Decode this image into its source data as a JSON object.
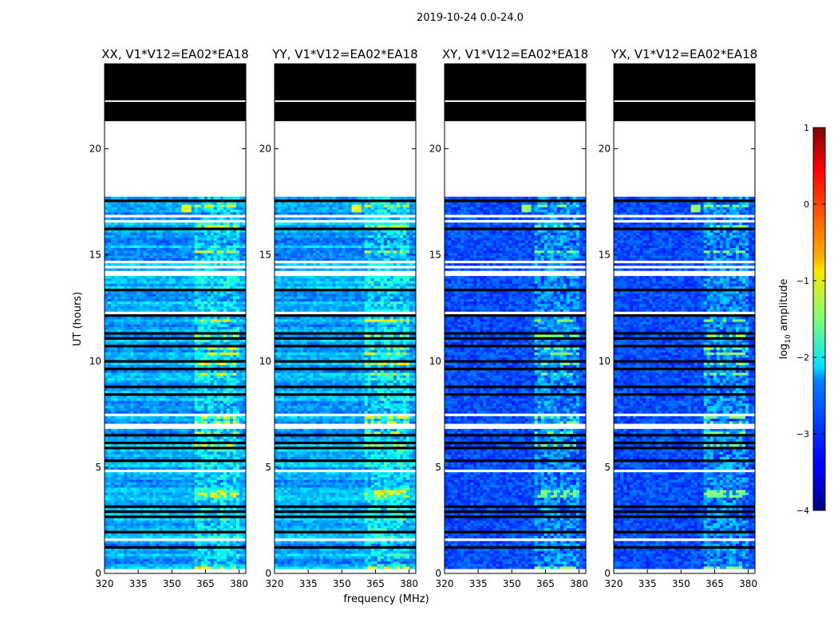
{
  "suptitle": "2019-10-24 0.0-24.0",
  "chart_data": {
    "type": "heatmap",
    "panels": [
      {
        "title": "XX, V1*V12=EA02*EA18",
        "pol": "XX"
      },
      {
        "title": "YY, V1*V12=EA02*EA18",
        "pol": "YY"
      },
      {
        "title": "XY, V1*V12=EA02*EA18",
        "pol": "XY"
      },
      {
        "title": "YX, V1*V12=EA02*EA18",
        "pol": "YX"
      }
    ],
    "xlabel": "frequency (MHz)",
    "ylabel": "UT (hours)",
    "xlim": [
      320,
      383
    ],
    "ylim": [
      0,
      24
    ],
    "xticks": [
      320,
      335,
      350,
      365,
      380
    ],
    "yticks": [
      0,
      5,
      10,
      15,
      20
    ],
    "no_data_range_hours": [
      17.7,
      21.3
    ],
    "flagged_range_hours": [
      21.3,
      24.0
    ],
    "colorbar": {
      "label_prefix": "log",
      "label_sub": "10",
      "label_suffix": " amplitude",
      "range": [
        -4,
        1
      ],
      "ticks": [
        1,
        0,
        -1,
        -2,
        -3,
        -4
      ],
      "colormap": "jet"
    }
  }
}
